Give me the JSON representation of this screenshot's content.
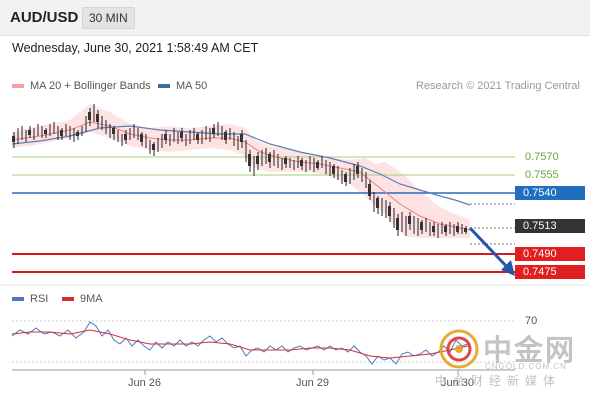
{
  "header": {
    "symbol": "AUD/USD",
    "timeframe": "30 MIN"
  },
  "datetime": "Wednesday, June 30, 2021 1:58:49 AM CET",
  "legend": {
    "bollinger": {
      "label": "MA 20 + Bollinger Bands",
      "color": "#f08080"
    },
    "ma50": {
      "label": "MA 50",
      "color": "#4472c4"
    }
  },
  "copyright": "Research © 2021 Trading Central",
  "levels": [
    {
      "value": "0.7570",
      "kind": "resistance-minor",
      "color": "#7cb342"
    },
    {
      "value": "0.7555",
      "kind": "resistance-minor",
      "color": "#7cb342"
    },
    {
      "value": "0.7540",
      "kind": "pivot",
      "color": "#1e6fc0"
    },
    {
      "value": "0.7513",
      "kind": "last-price",
      "color": "#333333"
    },
    {
      "value": "0.7490",
      "kind": "target",
      "color": "#e02020"
    },
    {
      "value": "0.7475",
      "kind": "target",
      "color": "#e02020"
    }
  ],
  "rsi_legend": {
    "rsi": {
      "label": "RSI",
      "color": "#4472c4"
    },
    "ma9": {
      "label": "9MA",
      "color": "#d32f2f"
    }
  },
  "rsi_tick": "70",
  "xaxis": {
    "ticks": [
      "Jun 26",
      "Jun 29",
      "Jun 30"
    ]
  },
  "watermark": {
    "cn": "中金网",
    "url": "CNGOLD.COM.CN",
    "sub": "中金财经新媒体"
  },
  "chart_data": {
    "type": "line",
    "title": "AUD/USD",
    "timeframe": "30 MIN",
    "series": [
      {
        "name": "MA 20 + Bollinger Bands"
      },
      {
        "name": "MA 50"
      }
    ],
    "levels": [
      0.757,
      0.7555,
      0.754,
      0.7513,
      0.749,
      0.7475
    ],
    "last_price": 0.7513,
    "x_ticks": [
      "Jun 26",
      "Jun 29",
      "Jun 30"
    ],
    "indicator": {
      "name": "RSI",
      "ma": "9MA",
      "tick": 70
    }
  }
}
